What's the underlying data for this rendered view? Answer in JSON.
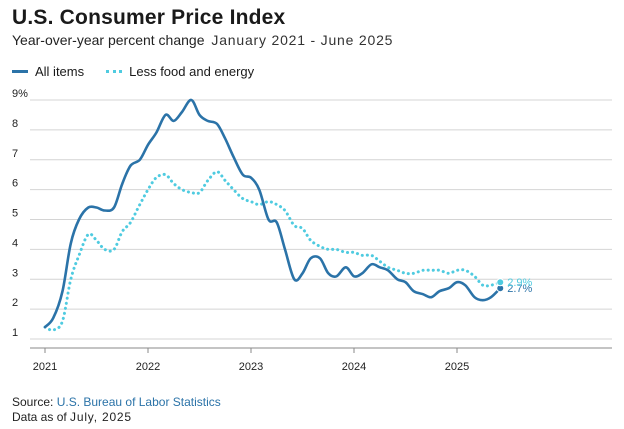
{
  "header": {
    "title": "U.S. Consumer Price Index",
    "subtitle": "Year-over-year percent change",
    "date_range": "January 2021 - June 2025"
  },
  "footer": {
    "source_prefix": "Source:",
    "source_name": "U.S. Bureau of Labor Statistics",
    "asof_prefix": "Data as of",
    "asof_date": "July, 2025"
  },
  "colors": {
    "all_items": "#2b73a8",
    "core": "#4fcbe0",
    "grid": "#d4d4d4",
    "axis": "#8a8a8a"
  },
  "chart_data": {
    "type": "line",
    "xlim": [
      2021,
      2026.5
    ],
    "ylim": [
      1,
      9
    ],
    "yticks": [
      "1",
      "2",
      "3",
      "4",
      "5",
      "6",
      "7",
      "8",
      "9%"
    ],
    "yticks_values": [
      1,
      2,
      3,
      4,
      5,
      6,
      7,
      8,
      9
    ],
    "xticks": [
      "2021",
      "2022",
      "2023",
      "2024",
      "2025"
    ],
    "xticks_values": [
      2021,
      2022,
      2023,
      2024,
      2025
    ],
    "grid": true,
    "legend_position": "top-left",
    "series": [
      {
        "name": "All items",
        "style": "solid",
        "end_label": "2.7%",
        "points": [
          [
            2021.0,
            1.4
          ],
          [
            2021.08,
            1.7
          ],
          [
            2021.17,
            2.6
          ],
          [
            2021.25,
            4.2
          ],
          [
            2021.33,
            5.0
          ],
          [
            2021.42,
            5.4
          ],
          [
            2021.5,
            5.4
          ],
          [
            2021.58,
            5.3
          ],
          [
            2021.67,
            5.4
          ],
          [
            2021.75,
            6.2
          ],
          [
            2021.83,
            6.8
          ],
          [
            2021.92,
            7.0
          ],
          [
            2022.0,
            7.5
          ],
          [
            2022.08,
            7.9
          ],
          [
            2022.17,
            8.5
          ],
          [
            2022.25,
            8.3
          ],
          [
            2022.33,
            8.6
          ],
          [
            2022.42,
            9.0
          ],
          [
            2022.5,
            8.5
          ],
          [
            2022.58,
            8.3
          ],
          [
            2022.67,
            8.2
          ],
          [
            2022.75,
            7.7
          ],
          [
            2022.83,
            7.1
          ],
          [
            2022.92,
            6.5
          ],
          [
            2023.0,
            6.4
          ],
          [
            2023.08,
            6.0
          ],
          [
            2023.17,
            5.0
          ],
          [
            2023.25,
            4.9
          ],
          [
            2023.33,
            4.0
          ],
          [
            2023.42,
            3.0
          ],
          [
            2023.5,
            3.2
          ],
          [
            2023.58,
            3.7
          ],
          [
            2023.67,
            3.7
          ],
          [
            2023.75,
            3.2
          ],
          [
            2023.83,
            3.1
          ],
          [
            2023.92,
            3.4
          ],
          [
            2024.0,
            3.1
          ],
          [
            2024.08,
            3.2
          ],
          [
            2024.17,
            3.5
          ],
          [
            2024.25,
            3.4
          ],
          [
            2024.33,
            3.3
          ],
          [
            2024.42,
            3.0
          ],
          [
            2024.5,
            2.9
          ],
          [
            2024.58,
            2.6
          ],
          [
            2024.67,
            2.5
          ],
          [
            2024.75,
            2.4
          ],
          [
            2024.83,
            2.6
          ],
          [
            2024.92,
            2.7
          ],
          [
            2025.0,
            2.9
          ],
          [
            2025.08,
            2.8
          ],
          [
            2025.17,
            2.4
          ],
          [
            2025.25,
            2.3
          ],
          [
            2025.33,
            2.4
          ],
          [
            2025.42,
            2.7
          ]
        ]
      },
      {
        "name": "Less food and energy",
        "style": "dotted",
        "end_label": "2.9%",
        "points": [
          [
            2021.0,
            1.4
          ],
          [
            2021.08,
            1.3
          ],
          [
            2021.17,
            1.6
          ],
          [
            2021.25,
            3.0
          ],
          [
            2021.33,
            3.8
          ],
          [
            2021.42,
            4.5
          ],
          [
            2021.5,
            4.3
          ],
          [
            2021.58,
            4.0
          ],
          [
            2021.67,
            4.0
          ],
          [
            2021.75,
            4.6
          ],
          [
            2021.83,
            4.9
          ],
          [
            2021.92,
            5.5
          ],
          [
            2022.0,
            6.0
          ],
          [
            2022.08,
            6.4
          ],
          [
            2022.17,
            6.5
          ],
          [
            2022.25,
            6.2
          ],
          [
            2022.33,
            6.0
          ],
          [
            2022.42,
            5.9
          ],
          [
            2022.5,
            5.9
          ],
          [
            2022.58,
            6.3
          ],
          [
            2022.67,
            6.6
          ],
          [
            2022.75,
            6.3
          ],
          [
            2022.83,
            6.0
          ],
          [
            2022.92,
            5.7
          ],
          [
            2023.0,
            5.6
          ],
          [
            2023.08,
            5.5
          ],
          [
            2023.17,
            5.6
          ],
          [
            2023.25,
            5.5
          ],
          [
            2023.33,
            5.3
          ],
          [
            2023.42,
            4.8
          ],
          [
            2023.5,
            4.7
          ],
          [
            2023.58,
            4.3
          ],
          [
            2023.67,
            4.1
          ],
          [
            2023.75,
            4.0
          ],
          [
            2023.83,
            4.0
          ],
          [
            2023.92,
            3.9
          ],
          [
            2024.0,
            3.9
          ],
          [
            2024.08,
            3.8
          ],
          [
            2024.17,
            3.8
          ],
          [
            2024.25,
            3.6
          ],
          [
            2024.33,
            3.4
          ],
          [
            2024.42,
            3.3
          ],
          [
            2024.5,
            3.2
          ],
          [
            2024.58,
            3.2
          ],
          [
            2024.67,
            3.3
          ],
          [
            2024.75,
            3.3
          ],
          [
            2024.83,
            3.3
          ],
          [
            2024.92,
            3.2
          ],
          [
            2025.0,
            3.3
          ],
          [
            2025.08,
            3.3
          ],
          [
            2025.17,
            3.1
          ],
          [
            2025.25,
            2.8
          ],
          [
            2025.33,
            2.8
          ],
          [
            2025.42,
            2.9
          ]
        ]
      }
    ]
  }
}
